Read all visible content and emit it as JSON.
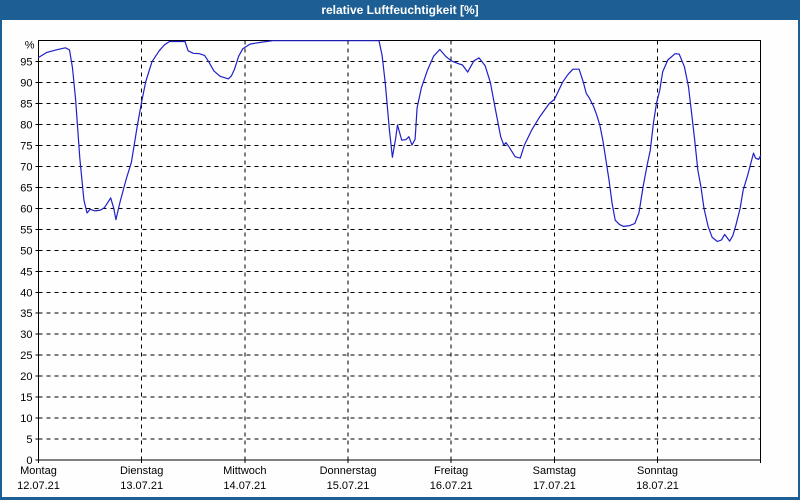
{
  "window": {
    "title": "relative Luftfeuchtigkeit [%]"
  },
  "colors": {
    "titlebar_bg": "#1d5f94",
    "title_text": "#ffffff",
    "window_bg": "#fdfefd",
    "plot_border": "#000000",
    "grid": "#000000",
    "label_text": "#000000",
    "line": "#2020c8"
  },
  "chart_data": {
    "type": "line",
    "title": "relative Luftfeuchtigkeit [%]",
    "ylabel": "%",
    "ytop_label": "%",
    "ylim": [
      0,
      100
    ],
    "yticks": [
      0,
      5,
      10,
      15,
      20,
      25,
      30,
      35,
      40,
      45,
      50,
      55,
      60,
      65,
      70,
      75,
      80,
      85,
      90,
      95
    ],
    "grid": "dashed",
    "legend": "none",
    "x_unit": "days",
    "x_range": [
      0,
      7
    ],
    "categories": [
      {
        "weekday": "Montag",
        "date": "12.07.21"
      },
      {
        "weekday": "Dienstag",
        "date": "13.07.21"
      },
      {
        "weekday": "Mittwoch",
        "date": "14.07.21"
      },
      {
        "weekday": "Donnerstag",
        "date": "15.07.21"
      },
      {
        "weekday": "Freitag",
        "date": "16.07.21"
      },
      {
        "weekday": "Samstag",
        "date": "17.07.21"
      },
      {
        "weekday": "Sonntag",
        "date": "18.07.21"
      }
    ],
    "series": [
      {
        "name": "relative-luftfeuchtigkeit",
        "color": "#2020c8",
        "points": [
          [
            0.0,
            96.0
          ],
          [
            0.08,
            97.2
          ],
          [
            0.17,
            97.8
          ],
          [
            0.26,
            98.3
          ],
          [
            0.3,
            97.8
          ],
          [
            0.33,
            93.5
          ],
          [
            0.36,
            86.0
          ],
          [
            0.4,
            72.0
          ],
          [
            0.44,
            62.0
          ],
          [
            0.47,
            58.9
          ],
          [
            0.5,
            59.8
          ],
          [
            0.55,
            59.4
          ],
          [
            0.6,
            59.6
          ],
          [
            0.64,
            60.2
          ],
          [
            0.7,
            62.5
          ],
          [
            0.73,
            60.0
          ],
          [
            0.75,
            57.3
          ],
          [
            0.79,
            61.5
          ],
          [
            0.85,
            67.0
          ],
          [
            0.9,
            71.0
          ],
          [
            0.96,
            80.0
          ],
          [
            1.0,
            85.5
          ],
          [
            1.04,
            90.3
          ],
          [
            1.1,
            95.0
          ],
          [
            1.17,
            97.6
          ],
          [
            1.22,
            99.0
          ],
          [
            1.27,
            99.8
          ],
          [
            1.42,
            99.8
          ],
          [
            1.45,
            97.6
          ],
          [
            1.5,
            97.0
          ],
          [
            1.56,
            96.9
          ],
          [
            1.61,
            96.5
          ],
          [
            1.65,
            95.0
          ],
          [
            1.7,
            92.8
          ],
          [
            1.76,
            91.5
          ],
          [
            1.8,
            91.2
          ],
          [
            1.84,
            90.9
          ],
          [
            1.87,
            91.6
          ],
          [
            1.9,
            93.2
          ],
          [
            1.94,
            96.3
          ],
          [
            1.98,
            98.1
          ],
          [
            2.05,
            99.2
          ],
          [
            2.15,
            99.6
          ],
          [
            2.27,
            100.0
          ],
          [
            3.3,
            100.0
          ],
          [
            3.33,
            96.5
          ],
          [
            3.36,
            90.0
          ],
          [
            3.4,
            79.0
          ],
          [
            3.43,
            72.2
          ],
          [
            3.46,
            76.5
          ],
          [
            3.48,
            79.9
          ],
          [
            3.52,
            76.3
          ],
          [
            3.56,
            76.4
          ],
          [
            3.59,
            77.1
          ],
          [
            3.62,
            75.1
          ],
          [
            3.65,
            76.5
          ],
          [
            3.67,
            84.0
          ],
          [
            3.71,
            88.7
          ],
          [
            3.77,
            93.0
          ],
          [
            3.83,
            96.3
          ],
          [
            3.89,
            97.9
          ],
          [
            3.95,
            96.2
          ],
          [
            4.0,
            95.2
          ],
          [
            4.06,
            94.6
          ],
          [
            4.11,
            94.2
          ],
          [
            4.16,
            92.5
          ],
          [
            4.22,
            95.2
          ],
          [
            4.27,
            95.9
          ],
          [
            4.33,
            94.0
          ],
          [
            4.38,
            90.0
          ],
          [
            4.43,
            83.5
          ],
          [
            4.48,
            77.1
          ],
          [
            4.51,
            75.1
          ],
          [
            4.53,
            75.7
          ],
          [
            4.56,
            74.7
          ],
          [
            4.62,
            72.3
          ],
          [
            4.67,
            72.0
          ],
          [
            4.71,
            75.1
          ],
          [
            4.78,
            78.7
          ],
          [
            4.86,
            81.9
          ],
          [
            4.95,
            85.0
          ],
          [
            5.0,
            86.0
          ],
          [
            5.08,
            90.1
          ],
          [
            5.13,
            91.9
          ],
          [
            5.18,
            93.2
          ],
          [
            5.24,
            93.2
          ],
          [
            5.28,
            90.2
          ],
          [
            5.31,
            87.4
          ],
          [
            5.34,
            86.3
          ],
          [
            5.38,
            84.3
          ],
          [
            5.41,
            82.3
          ],
          [
            5.44,
            79.9
          ],
          [
            5.47,
            76.3
          ],
          [
            5.5,
            71.6
          ],
          [
            5.53,
            66.8
          ],
          [
            5.56,
            61.2
          ],
          [
            5.59,
            57.2
          ],
          [
            5.63,
            56.2
          ],
          [
            5.67,
            55.7
          ],
          [
            5.73,
            55.9
          ],
          [
            5.78,
            56.4
          ],
          [
            5.82,
            59.0
          ],
          [
            5.86,
            65.2
          ],
          [
            5.9,
            70.4
          ],
          [
            5.93,
            73.9
          ],
          [
            5.96,
            80.3
          ],
          [
            5.99,
            85.1
          ],
          [
            6.02,
            88.0
          ],
          [
            6.05,
            92.6
          ],
          [
            6.1,
            95.4
          ],
          [
            6.17,
            96.9
          ],
          [
            6.21,
            96.8
          ],
          [
            6.26,
            93.8
          ],
          [
            6.3,
            89.0
          ],
          [
            6.33,
            82.7
          ],
          [
            6.36,
            76.3
          ],
          [
            6.39,
            69.2
          ],
          [
            6.42,
            65.2
          ],
          [
            6.45,
            60.0
          ],
          [
            6.49,
            55.7
          ],
          [
            6.53,
            53.1
          ],
          [
            6.58,
            52.1
          ],
          [
            6.62,
            52.5
          ],
          [
            6.65,
            53.8
          ],
          [
            6.7,
            52.2
          ],
          [
            6.73,
            53.5
          ],
          [
            6.76,
            56.0
          ],
          [
            6.8,
            60.0
          ],
          [
            6.83,
            64.4
          ],
          [
            6.87,
            67.6
          ],
          [
            6.9,
            70.4
          ],
          [
            6.93,
            73.2
          ],
          [
            6.95,
            72.0
          ],
          [
            6.98,
            71.7
          ],
          [
            7.0,
            72.6
          ]
        ]
      }
    ]
  }
}
